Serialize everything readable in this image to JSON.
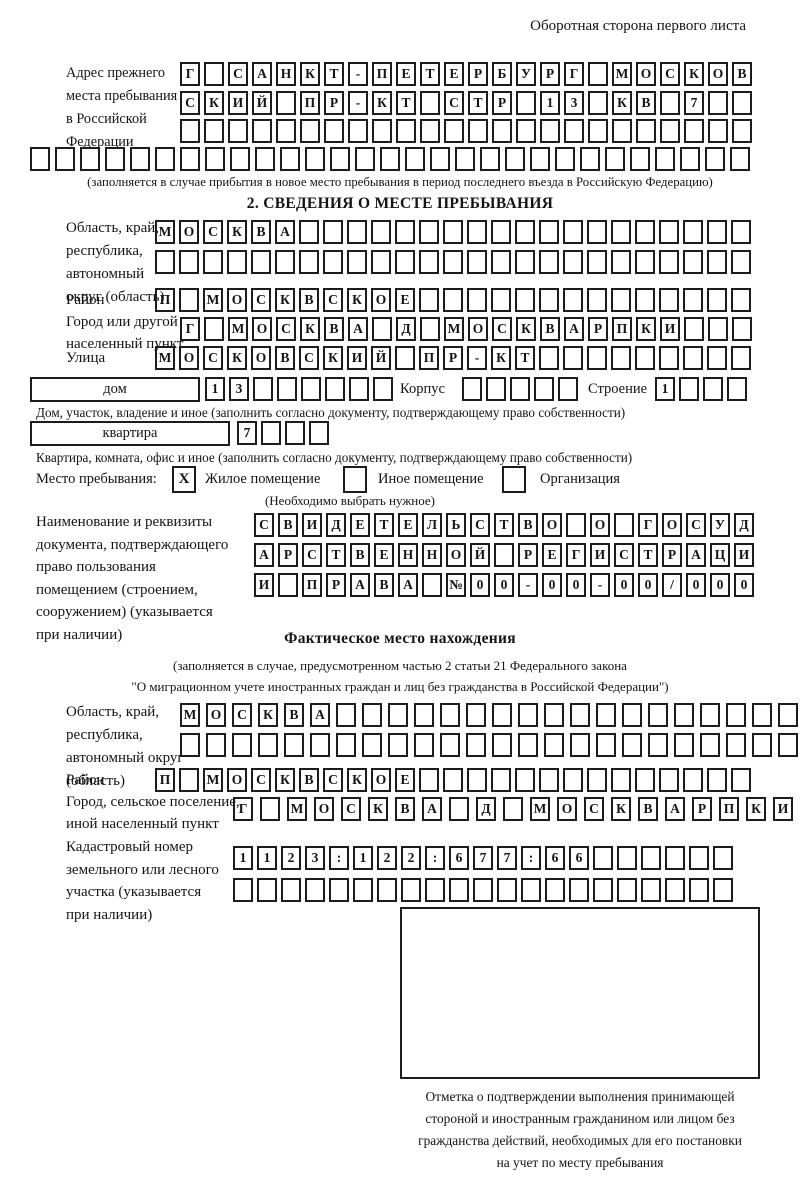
{
  "header": {
    "note": "Оборотная сторона первого листа"
  },
  "prev_address": {
    "label": "Адрес прежнего\nместа пребывания\nв Российской\nФедерации",
    "row1": {
      "text": "Г САНКТ-ПЕТЕРБУРГ МОСКОВ",
      "count": 24
    },
    "row2": {
      "text": "СКИЙ ПР-КТ СТР 13 КВ 7",
      "count": 24
    },
    "row3": {
      "text": "",
      "count": 24
    },
    "row4": {
      "text": "",
      "count": 29
    },
    "note": "(заполняется в случае прибытия в новое место пребывания в период последнего въезда в Российскую Федерацию)"
  },
  "section2": {
    "title": "2. СВЕДЕНИЯ О МЕСТЕ ПРЕБЫВАНИЯ",
    "oblast": {
      "label": "Область, край,\nреспублика,\nавтономный\nокруг (область)",
      "row1": {
        "text": "МОСКВА",
        "count": 25
      },
      "row2": {
        "text": "",
        "count": 25
      }
    },
    "raion": {
      "label": "Район",
      "row": {
        "text": "П МОСКВСКОЕ",
        "count": 25
      }
    },
    "gorod": {
      "label": "Город или другой\nнаселенный пункт",
      "row": {
        "text": "Г МОСКВА Д МОСКВАРПКИ",
        "count": 24
      }
    },
    "ulitsa": {
      "label": "Улица",
      "row": {
        "text": "МОСКОВСКИЙ ПР-КТ",
        "count": 25
      }
    },
    "dom": {
      "box_label": "дом",
      "number": {
        "text": "13",
        "count": 8
      },
      "korpus_label": "Корпус",
      "korpus": {
        "text": "",
        "count": 5
      },
      "stroenie_label": "Строение",
      "stroenie": {
        "text": "1",
        "count": 4
      },
      "note": "Дом, участок, владение и иное (заполнить согласно документу, подтверждающему право собственности)"
    },
    "kvartira": {
      "box_label": "квартира",
      "number": {
        "text": "7",
        "count": 4
      },
      "note": "Квартира, комната, офис и иное (заполнить согласно документу, подтверждающему право собственности)"
    },
    "mesto": {
      "label": "Место пребывания:",
      "options": [
        {
          "checked": "X",
          "label": "Жилое помещение"
        },
        {
          "checked": "",
          "label": "Иное помещение"
        },
        {
          "checked": "",
          "label": "Организация"
        }
      ],
      "note": "(Необходимо выбрать нужное)"
    },
    "document": {
      "label": "Наименование и реквизиты\nдокумента, подтверждающего\nправо пользования\nпомещением (строением,\nсооружением) (указывается\nпри наличии)",
      "row1": {
        "text": "СВИДЕТЕЛЬСТВО О ГОСУД",
        "count": 21
      },
      "row2": {
        "text": "АРСТВЕННОЙ РЕГИСТРАЦИ",
        "count": 21
      },
      "row3": {
        "text": "И ПРАВА №00-00-00/000",
        "count": 21
      }
    }
  },
  "fact": {
    "title": "Фактическое место нахождения",
    "note1": "(заполняется в случае, предусмотренном частью 2 статьи 21 Федерального закона",
    "note2": "\"О миграционном учете иностранных граждан и лиц без гражданства в Российской Федерации\")",
    "oblast": {
      "label": "Область, край,\nреспублика,\nавтономный округ\n(область)",
      "row1": {
        "text": "МОСКВА",
        "count": 24
      },
      "row2": {
        "text": "",
        "count": 24
      }
    },
    "raion": {
      "label": "Район",
      "row": {
        "text": "П МОСКВСКОЕ",
        "count": 25
      }
    },
    "gorod": {
      "label": "Город, сельское поселение,\nиной населенный пункт",
      "row": {
        "text": "Г МОСКВА Д МОСКВАРПКИ",
        "count": 22
      }
    },
    "kadastr": {
      "label": "Кадастровый номер\nземельного или лесного\nучастка (указывается\nпри наличии)",
      "row1": {
        "text": "1123:122:677:66",
        "count": 21
      },
      "row2": {
        "text": "",
        "count": 21
      }
    },
    "stamp_note": "Отметка о подтверждении выполнения принимающей\nстороной и иностранным гражданином или лицом без\nгражданства действий, необходимых для его постановки\nна учет по месту пребывания"
  }
}
